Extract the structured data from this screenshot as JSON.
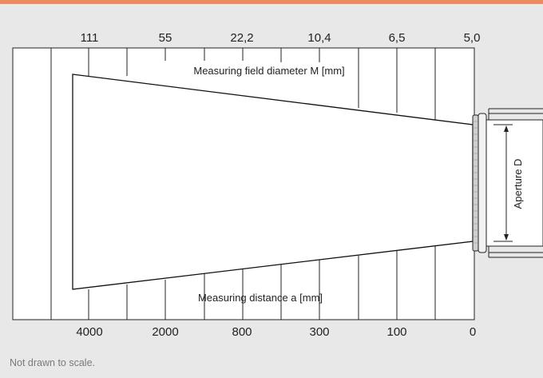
{
  "diagram": {
    "top_scale_values": [
      "111",
      "55",
      "22,2",
      "10,4",
      "6,5",
      "5,0"
    ],
    "bottom_scale_values": [
      "4000",
      "2000",
      "800",
      "300",
      "100",
      "0"
    ],
    "field_label": "Measuring field diameter M [mm]",
    "distance_label": "Measuring distance a [mm]",
    "aperture_label": "Aperture D",
    "colors": {
      "background": "#e8e8e8",
      "accent": "#f08a5d",
      "line": "#222222",
      "box": "#ffffff"
    }
  },
  "footnote": "Not drawn to scale."
}
